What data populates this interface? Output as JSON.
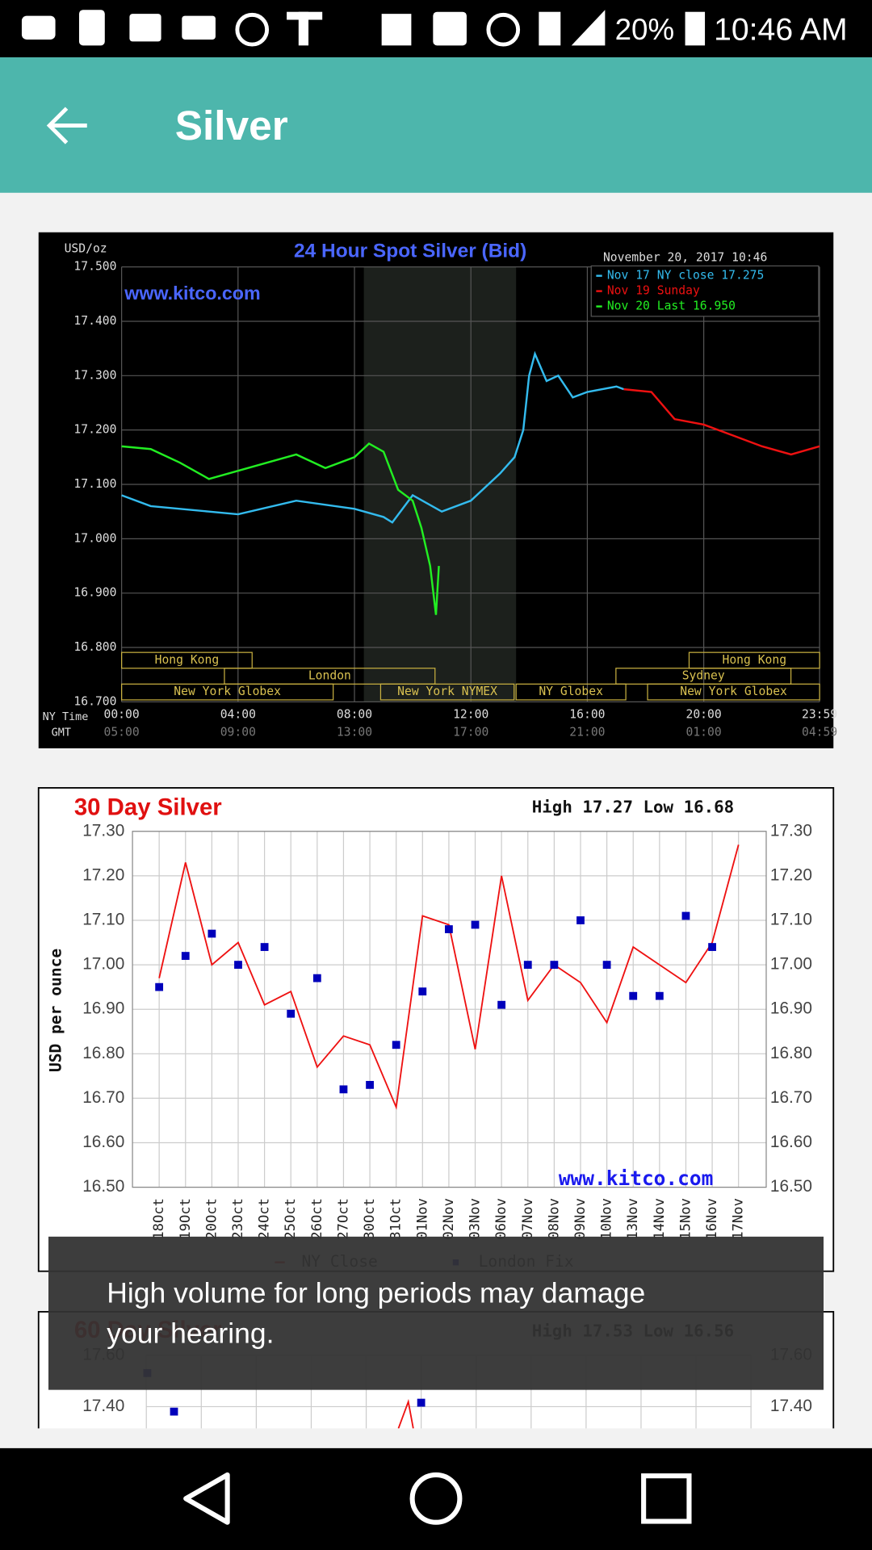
{
  "status_bar": {
    "battery": "20%",
    "time": "10:46 AM"
  },
  "app_bar": {
    "title": "Silver"
  },
  "chart_24h": {
    "type": "line",
    "title": "24 Hour Spot Silver (Bid)",
    "unit": "USD/oz",
    "timestamp": "November 20, 2017 10:46",
    "watermark": "www.kitco.com",
    "ny_time_label": "NY Time",
    "gmt_label": "GMT",
    "ylim": [
      16.7,
      17.5
    ],
    "yticks": [
      {
        "value": 17.5,
        "label": "17.500"
      },
      {
        "value": 17.4,
        "label": "17.400"
      },
      {
        "value": 17.3,
        "label": "17.300"
      },
      {
        "value": 17.2,
        "label": "17.200"
      },
      {
        "value": 17.1,
        "label": "17.100"
      },
      {
        "value": 17.0,
        "label": "17.000"
      },
      {
        "value": 16.9,
        "label": "16.900"
      },
      {
        "value": 16.8,
        "label": "16.800"
      },
      {
        "value": 16.7,
        "label": "16.700"
      }
    ],
    "xlim": [
      0,
      23.98
    ],
    "xticks": [
      {
        "value": 0,
        "label": "00:00"
      },
      {
        "value": 4,
        "label": "04:00"
      },
      {
        "value": 8,
        "label": "08:00"
      },
      {
        "value": 12,
        "label": "12:00"
      },
      {
        "value": 16,
        "label": "16:00"
      },
      {
        "value": 20,
        "label": "20:00"
      },
      {
        "value": 23.98,
        "label": "23:59"
      }
    ],
    "gmt_labels": [
      "05:00",
      "09:00",
      "13:00",
      "17:00",
      "21:00",
      "01:00",
      "04:59"
    ],
    "sessions": [
      "Hong Kong",
      "Hong Kong",
      "London",
      "Sydney",
      "New York Globex",
      "New York NYMEX",
      "NY Globex",
      "New York Globex"
    ],
    "series": [
      {
        "name": "Nov 17 NY close 17.275",
        "color": "#33bbee",
        "x": [
          0,
          1,
          3,
          4,
          6,
          8,
          9,
          9.3,
          10,
          11,
          12,
          13,
          13.5,
          13.8,
          14,
          14.2,
          14.6,
          15,
          15.5,
          16,
          17,
          17.25
        ],
        "values": [
          17.08,
          17.06,
          17.05,
          17.045,
          17.07,
          17.055,
          17.04,
          17.03,
          17.08,
          17.05,
          17.07,
          17.12,
          17.15,
          17.2,
          17.3,
          17.34,
          17.29,
          17.3,
          17.26,
          17.27,
          17.28,
          17.275
        ]
      },
      {
        "name": "Nov 19 Sunday",
        "color": "#ee1111",
        "x": [
          17.25,
          18.2,
          19,
          20,
          21,
          22,
          23,
          23.98
        ],
        "values": [
          17.275,
          17.27,
          17.22,
          17.21,
          17.19,
          17.17,
          17.155,
          17.17
        ]
      },
      {
        "name": "Nov 20 Last 16.950",
        "color": "#22ee22",
        "x": [
          0,
          1,
          2,
          3,
          4,
          5,
          6,
          7,
          8,
          8.5,
          9,
          9.5,
          10,
          10.3,
          10.6,
          10.8,
          10.9
        ],
        "values": [
          17.17,
          17.165,
          17.14,
          17.11,
          17.125,
          17.14,
          17.155,
          17.13,
          17.15,
          17.175,
          17.16,
          17.09,
          17.07,
          17.02,
          16.95,
          16.86,
          16.95
        ]
      }
    ]
  },
  "chart_30day": {
    "type": "line",
    "title": "30 Day Silver",
    "high_low": "High 17.27 Low 16.68",
    "y_label": "USD per ounce",
    "watermark": "www.kitco.com",
    "ylim": [
      16.5,
      17.3
    ],
    "yticks": [
      {
        "value": 17.3,
        "label": "17.30"
      },
      {
        "value": 17.2,
        "label": "17.20"
      },
      {
        "value": 17.1,
        "label": "17.10"
      },
      {
        "value": 17.0,
        "label": "17.00"
      },
      {
        "value": 16.9,
        "label": "16.90"
      },
      {
        "value": 16.8,
        "label": "16.80"
      },
      {
        "value": 16.7,
        "label": "16.70"
      },
      {
        "value": 16.6,
        "label": "16.60"
      },
      {
        "value": 16.5,
        "label": "16.50"
      }
    ],
    "categories": [
      "18Oct",
      "19Oct",
      "20Oct",
      "23Oct",
      "24Oct",
      "25Oct",
      "26Oct",
      "27Oct",
      "30Oct",
      "31Oct",
      "01Nov",
      "02Nov",
      "03Nov",
      "06Nov",
      "07Nov",
      "08Nov",
      "09Nov",
      "10Nov",
      "13Nov",
      "14Nov",
      "15Nov",
      "16Nov",
      "17Nov"
    ],
    "series": [
      {
        "name": "NY Close",
        "color": "#ee1111",
        "values": [
          16.97,
          17.23,
          17.0,
          17.05,
          16.91,
          16.94,
          16.77,
          16.84,
          16.82,
          16.68,
          17.11,
          17.09,
          16.81,
          17.2,
          16.92,
          17.0,
          16.96,
          16.87,
          17.04,
          17.0,
          16.96,
          17.05,
          17.27
        ]
      },
      {
        "name": "London Fix",
        "color": "#0000bb",
        "values": [
          16.95,
          17.02,
          17.07,
          17.0,
          17.04,
          16.89,
          16.97,
          16.72,
          16.73,
          16.82,
          16.94,
          17.08,
          17.09,
          16.91,
          17.0,
          17.0,
          17.1,
          17.0,
          16.93,
          16.93,
          17.11,
          17.04,
          null
        ]
      }
    ]
  },
  "chart_60day": {
    "title": "60 Day Silver",
    "high_low": "High 17.53 Low 16.56",
    "yticks": [
      {
        "value": 17.6,
        "label": "17.60"
      },
      {
        "value": 17.4,
        "label": "17.40"
      }
    ]
  },
  "toast": {
    "message_lines": [
      "High volume for long periods may damage",
      "your hearing."
    ]
  }
}
